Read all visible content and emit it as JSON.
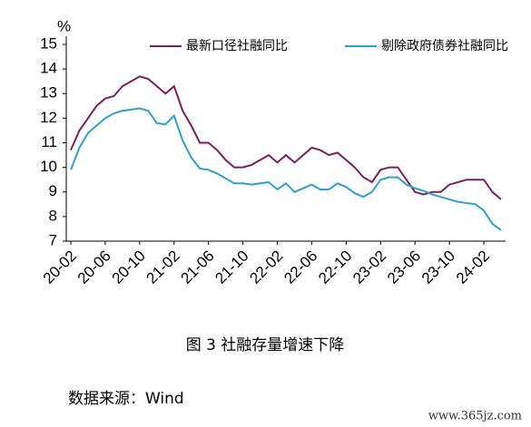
{
  "chart_data": {
    "type": "line",
    "y_unit": "%",
    "categories": [
      "20-02",
      null,
      null,
      null,
      "20-06",
      null,
      null,
      null,
      "20-10",
      null,
      null,
      null,
      "21-02",
      null,
      null,
      null,
      "21-06",
      null,
      null,
      null,
      "21-10",
      null,
      null,
      null,
      "22-02",
      null,
      null,
      null,
      "22-06",
      null,
      null,
      null,
      "22-10",
      null,
      null,
      null,
      "23-02",
      null,
      null,
      null,
      "23-06",
      null,
      null,
      null,
      "23-10",
      null,
      null,
      null,
      "24-02",
      null,
      null
    ],
    "series": [
      {
        "name": "最新口径社融同比",
        "color": "#7b1f5a",
        "values": [
          10.7,
          11.5,
          12.0,
          12.5,
          12.8,
          12.9,
          13.3,
          13.5,
          13.7,
          13.6,
          13.3,
          13.0,
          13.3,
          12.3,
          11.7,
          11.0,
          11.0,
          10.7,
          10.3,
          10.0,
          10.0,
          10.1,
          10.3,
          10.5,
          10.2,
          10.5,
          10.2,
          10.5,
          10.8,
          10.7,
          10.5,
          10.6,
          10.3,
          10.0,
          9.6,
          9.4,
          9.9,
          10.0,
          10.0,
          9.5,
          9.0,
          8.9,
          9.0,
          9.0,
          9.3,
          9.4,
          9.5,
          9.5,
          9.5,
          9.0,
          8.7
        ]
      },
      {
        "name": "剔除政府债券社融同比",
        "color": "#2e9ed3",
        "values": [
          9.9,
          10.8,
          11.4,
          11.7,
          12.0,
          12.2,
          12.3,
          12.35,
          12.4,
          12.3,
          11.8,
          11.75,
          12.1,
          11.1,
          10.4,
          9.95,
          9.9,
          9.75,
          9.55,
          9.35,
          9.35,
          9.3,
          9.35,
          9.4,
          9.1,
          9.35,
          9.0,
          9.15,
          9.3,
          9.1,
          9.1,
          9.35,
          9.2,
          8.95,
          8.8,
          9.0,
          9.5,
          9.6,
          9.6,
          9.3,
          9.15,
          9.05,
          8.9,
          8.8,
          8.7,
          8.6,
          8.55,
          8.5,
          8.25,
          7.7,
          7.45
        ]
      }
    ],
    "ylim": [
      7,
      15
    ],
    "yticks": [
      7,
      8,
      9,
      10,
      11,
      12,
      13,
      14,
      15
    ],
    "grid": false,
    "legend": "top"
  },
  "caption": "图 3 社融存量增速下降",
  "source": "数据来源：Wind",
  "watermark": "www.365jz.com"
}
